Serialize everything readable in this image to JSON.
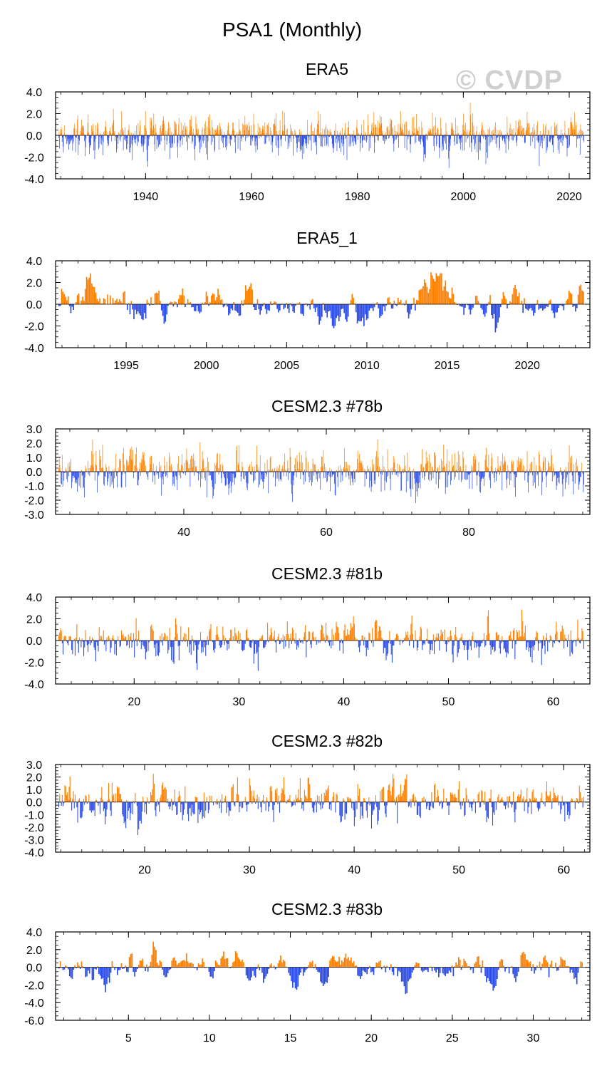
{
  "figure": {
    "title": "PSA1 (Monthly)",
    "watermark": "© CVDP",
    "colors": {
      "positive": "#ff8000",
      "negative": "#2d4de8",
      "frame": "#000000"
    }
  },
  "chart_data": [
    {
      "type": "bar",
      "title": "ERA5",
      "xlim": [
        1923.0,
        2023.9
      ],
      "ylim": [
        -4.0,
        4.0
      ],
      "yticks": [
        -4.0,
        -2.0,
        0.0,
        2.0,
        4.0
      ],
      "ytick_labels": [
        "-4.0",
        "-2.0",
        "0.0",
        "2.0",
        "4.0"
      ],
      "xticks": [
        1940,
        1960,
        1980,
        2000,
        2020
      ],
      "xtick_labels": [
        "1940",
        "1960",
        "1980",
        "2000",
        "2020"
      ],
      "x_minor_step": 4,
      "series": [
        {
          "name": "PSA1",
          "seed": 11,
          "amp": 0.9,
          "smooth": 0.3
        }
      ]
    },
    {
      "type": "bar",
      "title": "ERA5_1",
      "xlim": [
        1990.6,
        2023.9
      ],
      "ylim": [
        -4.0,
        4.0
      ],
      "yticks": [
        -4.0,
        -2.0,
        0.0,
        2.0,
        4.0
      ],
      "ytick_labels": [
        "-4.0",
        "-2.0",
        "0.0",
        "2.0",
        "4.0"
      ],
      "xticks": [
        1995,
        2000,
        2005,
        2010,
        2015,
        2020
      ],
      "xtick_labels": [
        "1995",
        "2000",
        "2005",
        "2010",
        "2015",
        "2020"
      ],
      "x_minor_step": 1,
      "series": [
        {
          "name": "PSA1",
          "seed": 23,
          "amp": 0.9,
          "smooth": 0.8
        }
      ]
    },
    {
      "type": "bar",
      "title": "CESM2.3 #78b",
      "xlim": [
        22.0,
        97.0
      ],
      "ylim": [
        -3.0,
        3.0
      ],
      "yticks": [
        -3.0,
        -2.0,
        -1.0,
        0.0,
        1.0,
        2.0,
        3.0
      ],
      "ytick_labels": [
        "-3.0",
        "-2.0",
        "-1.0",
        "0.0",
        "1.0",
        "2.0",
        "3.0"
      ],
      "xticks": [
        40,
        60,
        80
      ],
      "xtick_labels": [
        "40",
        "60",
        "80"
      ],
      "x_minor_step": 4,
      "series": [
        {
          "name": "PSA1",
          "seed": 37,
          "amp": 0.75,
          "smooth": 0.3
        }
      ]
    },
    {
      "type": "bar",
      "title": "CESM2.3 #81b",
      "xlim": [
        12.5,
        63.5
      ],
      "ylim": [
        -4.0,
        4.0
      ],
      "yticks": [
        -4.0,
        -2.0,
        0.0,
        2.0,
        4.0
      ],
      "ytick_labels": [
        "-4.0",
        "-2.0",
        "0.0",
        "2.0",
        "4.0"
      ],
      "xticks": [
        20,
        30,
        40,
        50,
        60
      ],
      "xtick_labels": [
        "20",
        "30",
        "40",
        "50",
        "60"
      ],
      "x_minor_step": 2,
      "series": [
        {
          "name": "PSA1",
          "seed": 41,
          "amp": 0.85,
          "smooth": 0.5
        }
      ]
    },
    {
      "type": "bar",
      "title": "CESM2.3 #82b",
      "xlim": [
        11.5,
        62.5
      ],
      "ylim": [
        -4.0,
        3.0
      ],
      "yticks": [
        -4.0,
        -3.0,
        -2.0,
        -1.0,
        0.0,
        1.0,
        2.0,
        3.0
      ],
      "ytick_labels": [
        "-4.0",
        "-3.0",
        "-2.0",
        "-1.0",
        "0.0",
        "1.0",
        "2.0",
        "3.0"
      ],
      "xticks": [
        20,
        30,
        40,
        50,
        60
      ],
      "xtick_labels": [
        "20",
        "30",
        "40",
        "50",
        "60"
      ],
      "x_minor_step": 2,
      "series": [
        {
          "name": "PSA1",
          "seed": 53,
          "amp": 0.8,
          "smooth": 0.5
        }
      ]
    },
    {
      "type": "bar",
      "title": "CESM2.3 #83b",
      "xlim": [
        0.5,
        33.5
      ],
      "ylim": [
        -6.0,
        4.0
      ],
      "yticks": [
        -6.0,
        -4.0,
        -2.0,
        0.0,
        2.0,
        4.0
      ],
      "ytick_labels": [
        "-6.0",
        "-4.0",
        "-2.0",
        "0.0",
        "2.0",
        "4.0"
      ],
      "xticks": [
        5,
        10,
        15,
        20,
        25,
        30
      ],
      "xtick_labels": [
        "5",
        "10",
        "15",
        "20",
        "25",
        "30"
      ],
      "x_minor_step": 1,
      "series": [
        {
          "name": "PSA1",
          "seed": 67,
          "amp": 0.9,
          "smooth": 0.8
        }
      ]
    }
  ]
}
